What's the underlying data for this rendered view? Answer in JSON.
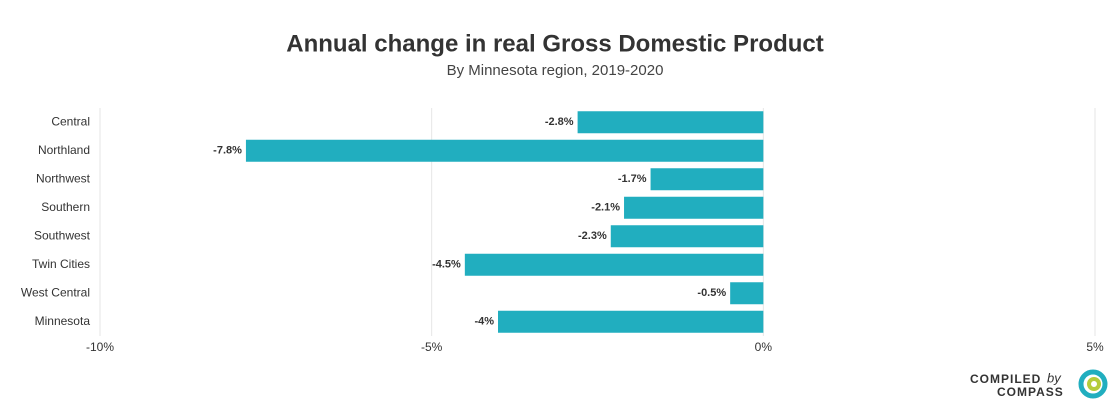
{
  "chart_data": {
    "type": "barh",
    "title": "Annual change in real Gross Domestic Product",
    "subtitle": "By Minnesota region, 2019-2020",
    "categories": [
      "Central",
      "Northland",
      "Northwest",
      "Southern",
      "Southwest",
      "Twin Cities",
      "West Central",
      "Minnesota"
    ],
    "values": [
      -2.8,
      -7.8,
      -1.7,
      -2.1,
      -2.3,
      -4.5,
      -0.5,
      -4
    ],
    "value_labels": [
      "-2.8%",
      "-7.8%",
      "-1.7%",
      "-2.1%",
      "-2.3%",
      "-4.5%",
      "-0.5%",
      "-4%"
    ],
    "color": "#21aebf",
    "xlim": [
      -10,
      5
    ],
    "xticks": [
      {
        "value": -10,
        "label": "-10%"
      },
      {
        "value": -5,
        "label": "-5%"
      },
      {
        "value": 0,
        "label": "0%"
      },
      {
        "value": 5,
        "label": "5%"
      }
    ],
    "grid": true
  },
  "footer": {
    "compiled": "COMPILED",
    "by": "by",
    "compass": "COMPASS"
  }
}
